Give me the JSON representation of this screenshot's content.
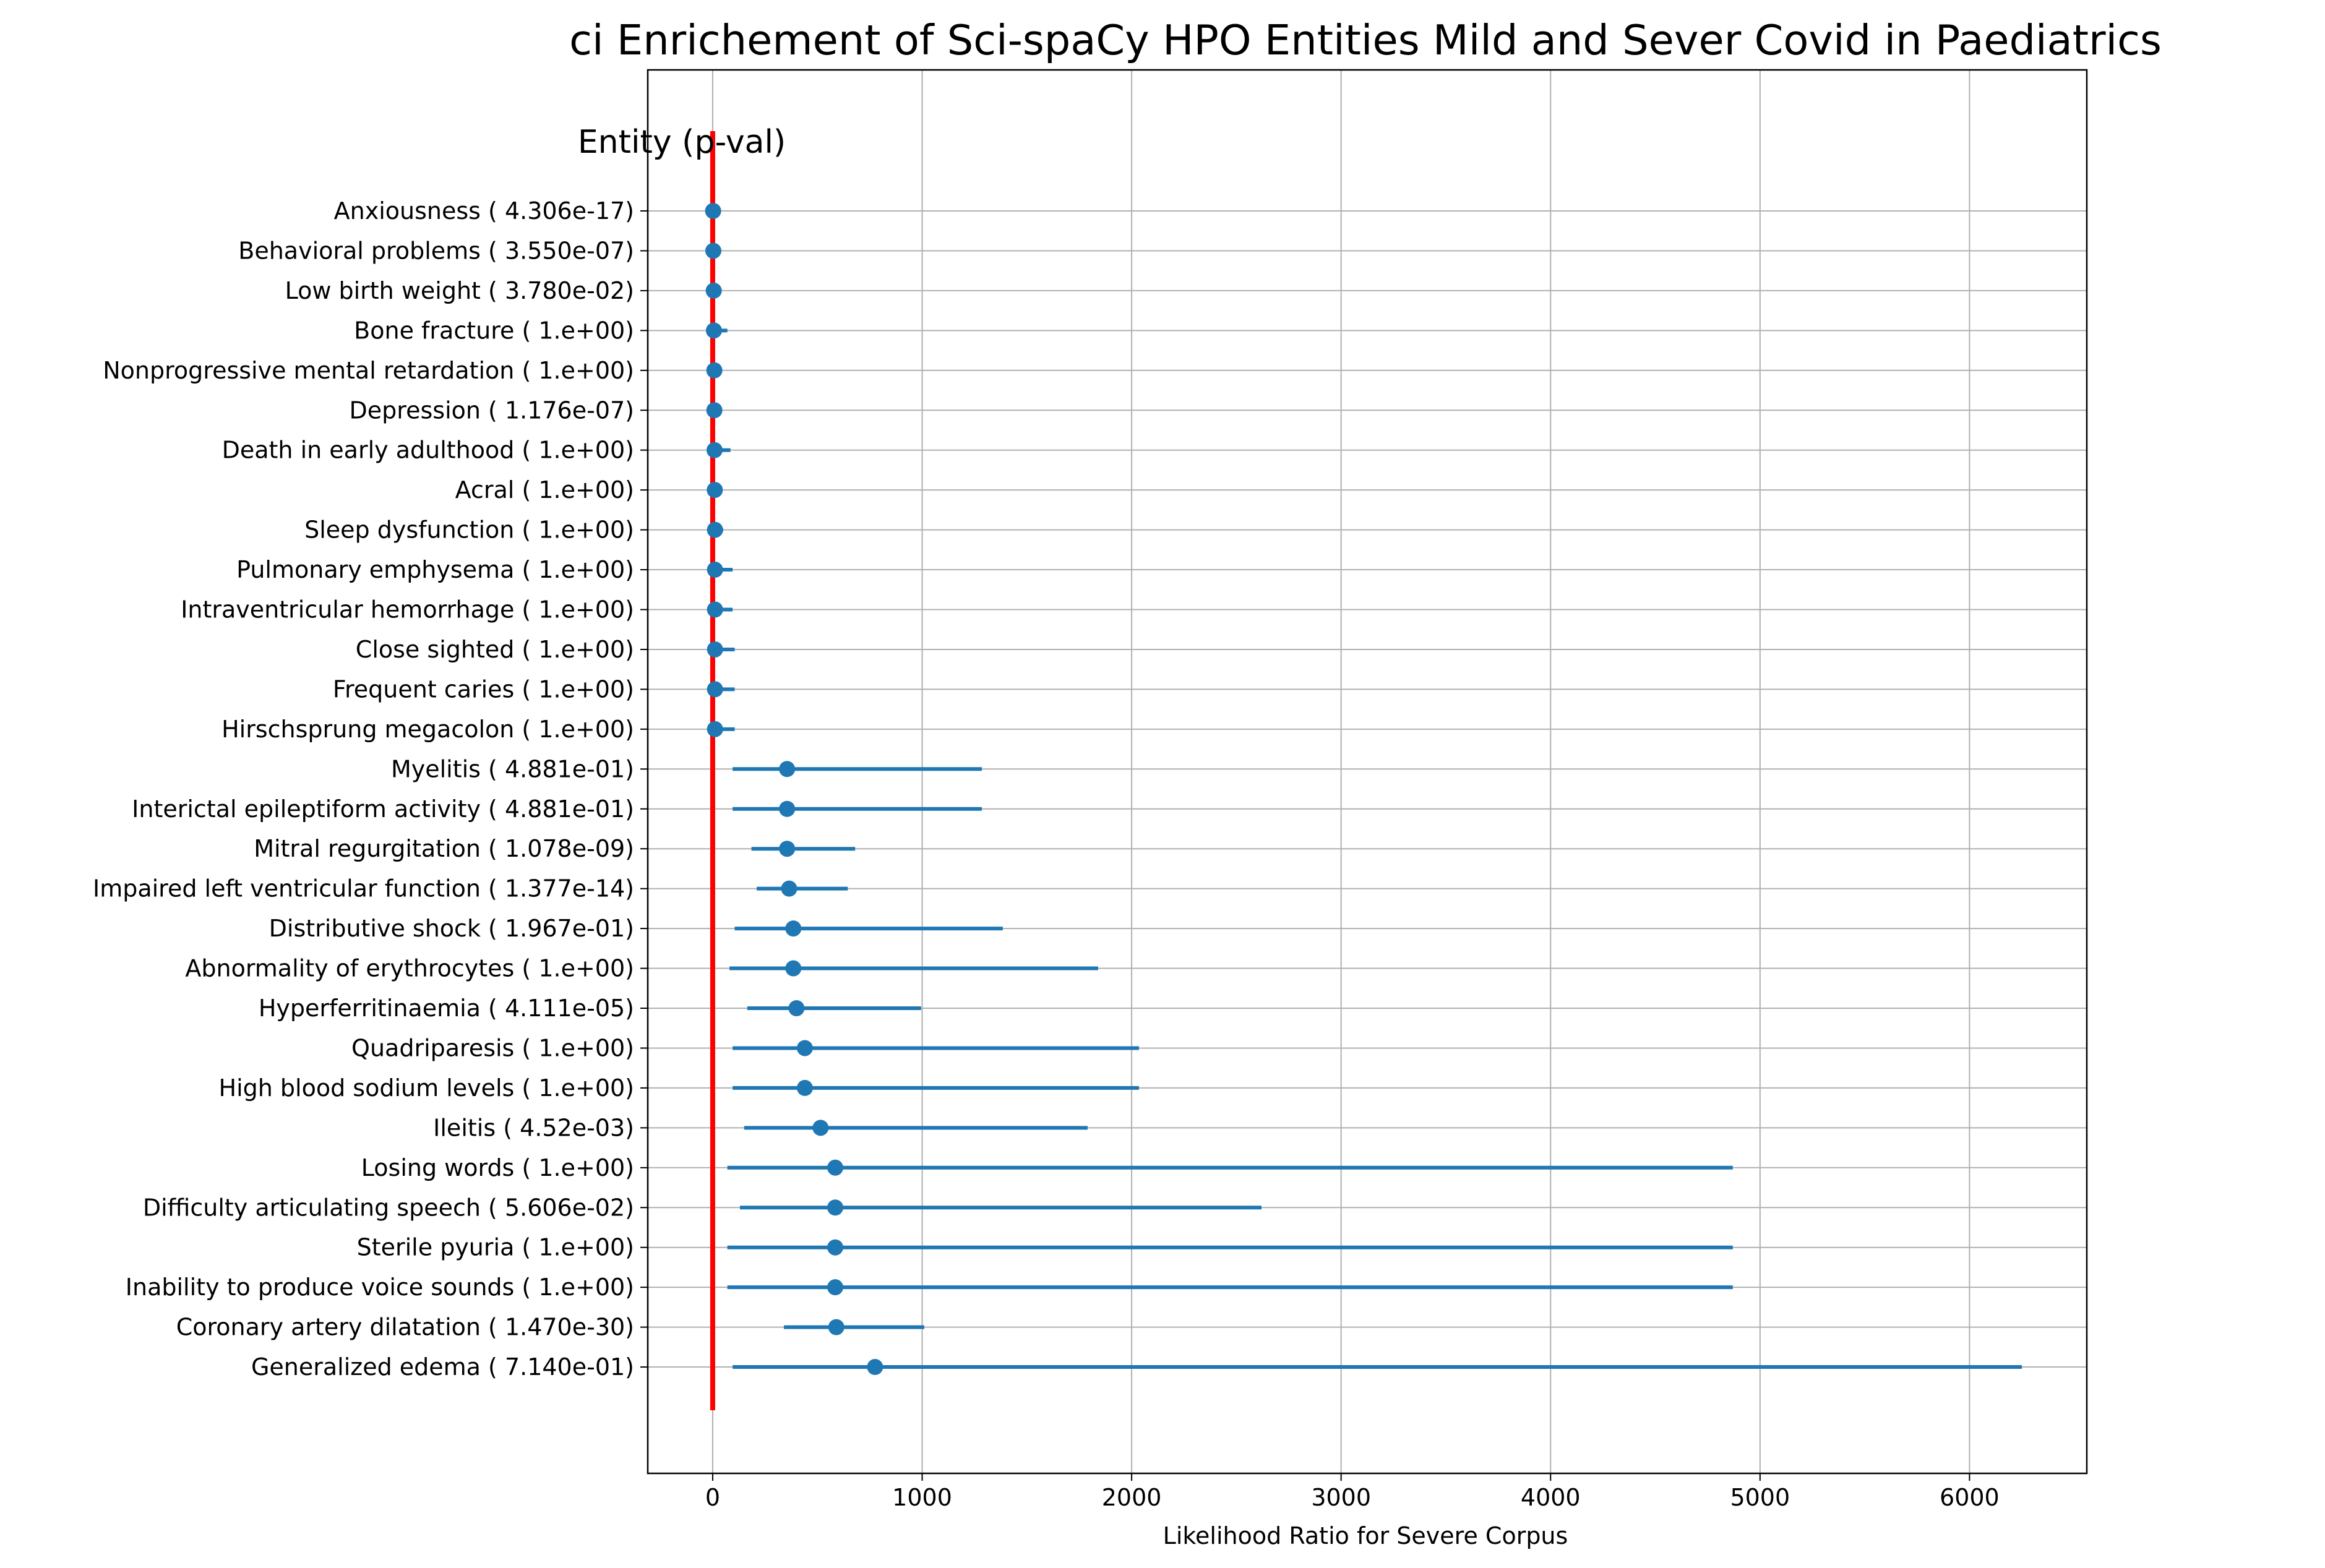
{
  "chart_data": {
    "type": "scatter",
    "title": "ci Enrichement of Sci-spaCy HPO Entities Mild and Sever Covid in Paediatrics",
    "header_label": "Entity (p-val)",
    "xlabel": "Likelihood Ratio for Severe Corpus",
    "xlim": [
      -310,
      6560
    ],
    "xticks": [
      0,
      1000,
      2000,
      3000,
      4000,
      5000,
      6000
    ],
    "xtick_labels": [
      "0",
      "1000",
      "2000",
      "3000",
      "4000",
      "5000",
      "6000"
    ],
    "grid": true,
    "reference_line": {
      "x": 0,
      "color": "#ff0000"
    },
    "marker_color": "#1f77b4",
    "entries": [
      {
        "label": "Anxiousness  (  4.306e-17)",
        "value": 2,
        "ci_low": 1,
        "ci_high": 4
      },
      {
        "label": "Behavioral problems  (  3.550e-07)",
        "value": 3,
        "ci_low": 1,
        "ci_high": 6
      },
      {
        "label": "Low birth weight  (  3.780e-02)",
        "value": 5,
        "ci_low": 1,
        "ci_high": 20
      },
      {
        "label": "Bone fracture  (  1.e+00)",
        "value": 6,
        "ci_low": 1,
        "ci_high": 70
      },
      {
        "label": "Nonprogressive mental retardation  (  1.e+00)",
        "value": 8,
        "ci_low": 1,
        "ci_high": 40
      },
      {
        "label": "Depression  (  1.176e-07)",
        "value": 8,
        "ci_low": 2,
        "ci_high": 30
      },
      {
        "label": "Death in early adulthood  (  1.e+00)",
        "value": 9,
        "ci_low": 1,
        "ci_high": 85
      },
      {
        "label": "Acral  (  1.e+00)",
        "value": 10,
        "ci_low": 2,
        "ci_high": 45
      },
      {
        "label": "Sleep dysfunction  (  1.e+00)",
        "value": 11,
        "ci_low": 2,
        "ci_high": 50
      },
      {
        "label": "Pulmonary emphysema  (  1.e+00)",
        "value": 11,
        "ci_low": 1,
        "ci_high": 95
      },
      {
        "label": "Intraventricular hemorrhage  (  1.e+00)",
        "value": 11,
        "ci_low": 1,
        "ci_high": 95
      },
      {
        "label": "Close sighted  (  1.e+00)",
        "value": 11,
        "ci_low": 1,
        "ci_high": 105
      },
      {
        "label": "Frequent caries  (  1.e+00)",
        "value": 11,
        "ci_low": 1,
        "ci_high": 105
      },
      {
        "label": "Hirschsprung megacolon  (  1.e+00)",
        "value": 11,
        "ci_low": 1,
        "ci_high": 105
      },
      {
        "label": "Myelitis  (  4.881e-01)",
        "value": 355,
        "ci_low": 95,
        "ci_high": 1285
      },
      {
        "label": "Interictal epileptiform activity  (  4.881e-01)",
        "value": 355,
        "ci_low": 95,
        "ci_high": 1285
      },
      {
        "label": "Mitral regurgitation  (  1.078e-09)",
        "value": 355,
        "ci_low": 185,
        "ci_high": 680
      },
      {
        "label": "Impaired left ventricular function  (  1.377e-14)",
        "value": 365,
        "ci_low": 210,
        "ci_high": 645
      },
      {
        "label": "Distributive shock  (  1.967e-01)",
        "value": 385,
        "ci_low": 105,
        "ci_high": 1385
      },
      {
        "label": "Abnormality of erythrocytes  (  1.e+00)",
        "value": 385,
        "ci_low": 80,
        "ci_high": 1840
      },
      {
        "label": "Hyperferritinaemia  (  4.111e-05)",
        "value": 400,
        "ci_low": 165,
        "ci_high": 995
      },
      {
        "label": "Quadriparesis  (  1.e+00)",
        "value": 440,
        "ci_low": 95,
        "ci_high": 2035
      },
      {
        "label": "High blood sodium levels  (  1.e+00)",
        "value": 440,
        "ci_low": 95,
        "ci_high": 2035
      },
      {
        "label": "Ileitis  (  4.52e-03)",
        "value": 515,
        "ci_low": 150,
        "ci_high": 1790
      },
      {
        "label": "Losing words  (  1.e+00)",
        "value": 585,
        "ci_low": 70,
        "ci_high": 4870
      },
      {
        "label": "Difficulty articulating speech  (  5.606e-02)",
        "value": 585,
        "ci_low": 130,
        "ci_high": 2620
      },
      {
        "label": "Sterile pyuria  (  1.e+00)",
        "value": 585,
        "ci_low": 70,
        "ci_high": 4870
      },
      {
        "label": "Inability to produce voice sounds  (  1.e+00)",
        "value": 585,
        "ci_low": 70,
        "ci_high": 4870
      },
      {
        "label": "Coronary artery dilatation  (  1.470e-30)",
        "value": 590,
        "ci_low": 340,
        "ci_high": 1010
      },
      {
        "label": "Generalized edema  (  7.140e-01)",
        "value": 775,
        "ci_low": 95,
        "ci_high": 6250
      }
    ]
  }
}
